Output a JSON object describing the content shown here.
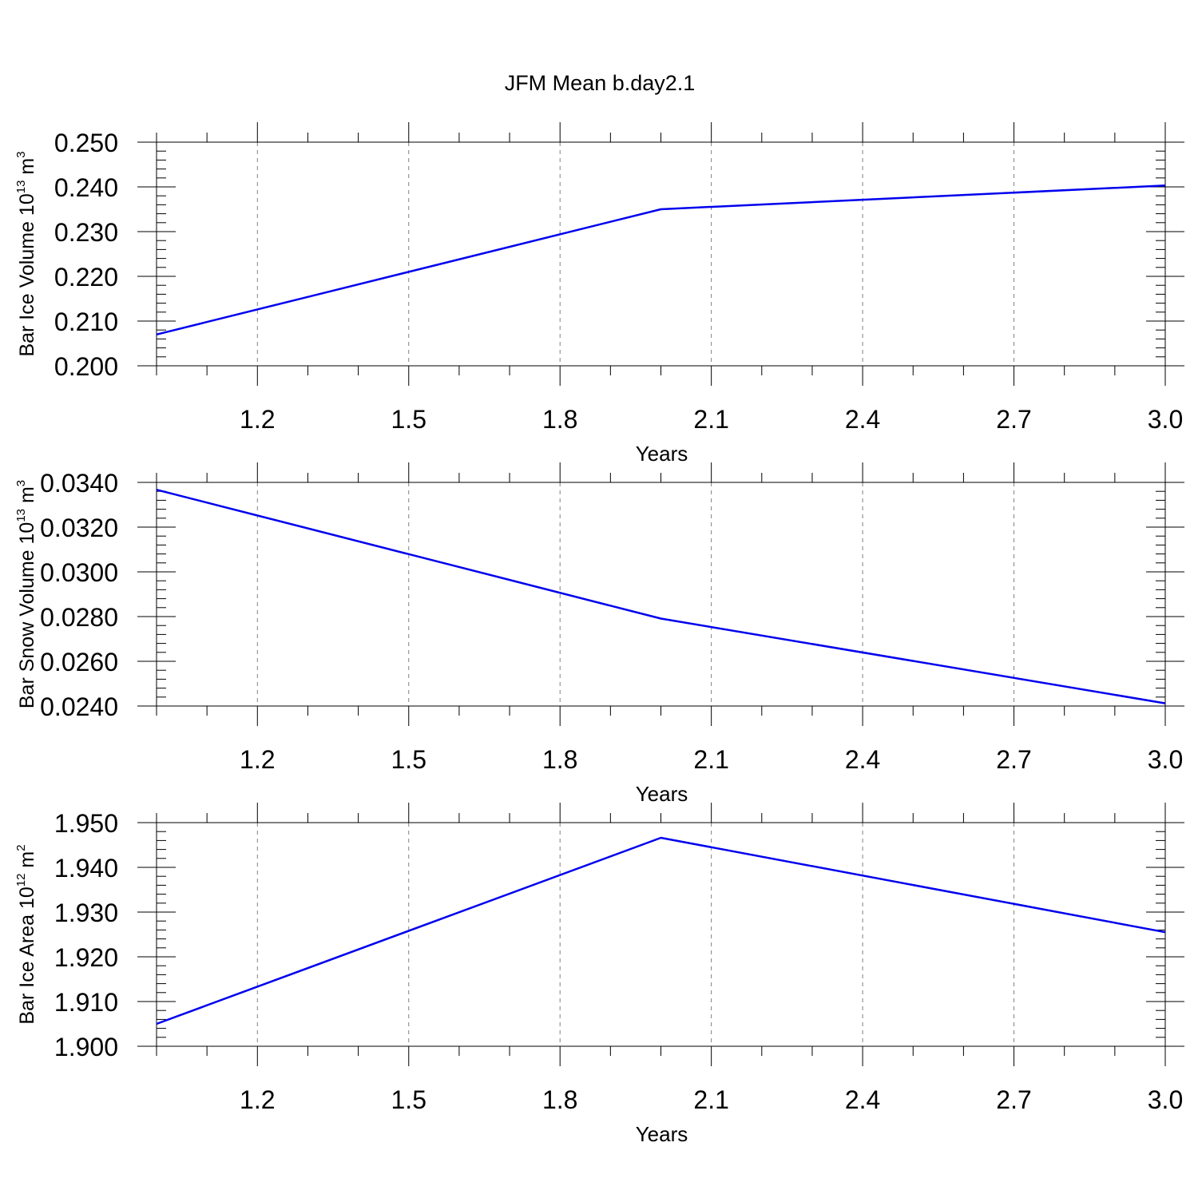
{
  "figure_title": "JFM Mean b.day2.1",
  "colors": {
    "line": "#0000ee",
    "grid": "#808080",
    "frame": "#000000"
  },
  "chart_data": [
    {
      "type": "line",
      "xlabel": "Years",
      "ylabel": {
        "text": "Bar Ice Volume 10",
        "exp": "13",
        "unit": " m",
        "unit_exp": "3"
      },
      "xlim": [
        1,
        3
      ],
      "xticks": [
        "1.2",
        "1.5",
        "1.8",
        "2.1",
        "2.4",
        "2.7",
        "3.0"
      ],
      "ylim": [
        0.2,
        0.25
      ],
      "yticks": [
        "0.200",
        "0.210",
        "0.220",
        "0.230",
        "0.240",
        "0.250"
      ],
      "grid": "x-dashed",
      "series": [
        {
          "x": [
            1,
            2,
            3
          ],
          "y": [
            0.207,
            0.235,
            0.2403
          ]
        }
      ]
    },
    {
      "type": "line",
      "xlabel": "Years",
      "ylabel": {
        "text": "Bar Snow Volume 10",
        "exp": "13",
        "unit": " m",
        "unit_exp": "3"
      },
      "xlim": [
        1,
        3
      ],
      "xticks": [
        "1.2",
        "1.5",
        "1.8",
        "2.1",
        "2.4",
        "2.7",
        "3.0"
      ],
      "ylim": [
        0.024,
        0.034
      ],
      "yticks": [
        "0.0240",
        "0.0260",
        "0.0280",
        "0.0300",
        "0.0320",
        "0.0340"
      ],
      "grid": "x-dashed",
      "series": [
        {
          "x": [
            1,
            2,
            3
          ],
          "y": [
            0.03367,
            0.02791,
            0.02412
          ]
        }
      ]
    },
    {
      "type": "line",
      "xlabel": "Years",
      "ylabel": {
        "text": "Bar Ice Area 10",
        "exp": "12",
        "unit": " m",
        "unit_exp": "2"
      },
      "xlim": [
        1,
        3
      ],
      "xticks": [
        "1.2",
        "1.5",
        "1.8",
        "2.1",
        "2.4",
        "2.7",
        "3.0"
      ],
      "ylim": [
        1.9,
        1.95
      ],
      "yticks": [
        "1.900",
        "1.910",
        "1.920",
        "1.930",
        "1.940",
        "1.950"
      ],
      "grid": "x-dashed",
      "series": [
        {
          "x": [
            1,
            2,
            3
          ],
          "y": [
            1.905,
            1.9466,
            1.9255
          ]
        }
      ]
    }
  ]
}
